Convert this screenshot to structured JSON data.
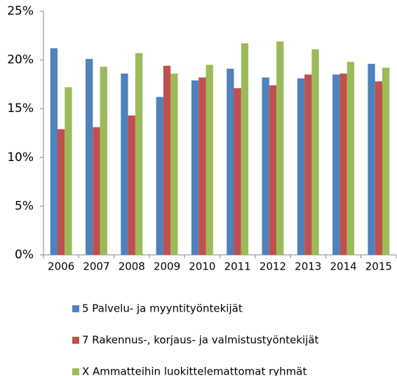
{
  "chart_data": {
    "type": "bar",
    "categories": [
      "2006",
      "2007",
      "2008",
      "2009",
      "2010",
      "2011",
      "2012",
      "2013",
      "2014",
      "2015"
    ],
    "series": [
      {
        "name": "5 Palvelu- ja myyntityöntekijät",
        "color": "#4f81bd",
        "values": [
          21.2,
          20.1,
          18.6,
          16.2,
          17.9,
          19.1,
          18.2,
          18.1,
          18.5,
          19.6
        ]
      },
      {
        "name": "7 Rakennus-, korjaus- ja valmistustyöntekijät",
        "color": "#c0504d",
        "values": [
          12.9,
          13.1,
          14.3,
          19.4,
          18.2,
          17.1,
          17.4,
          18.5,
          18.6,
          17.8
        ]
      },
      {
        "name": "X Ammatteihin luokittelemattomat ryhmät",
        "color": "#9bbb59",
        "values": [
          17.2,
          19.3,
          20.7,
          18.6,
          19.5,
          21.7,
          21.9,
          21.1,
          19.8,
          19.2
        ]
      }
    ],
    "ylim": [
      0,
      25
    ],
    "yticks": [
      {
        "value": 0,
        "label": "0%"
      },
      {
        "value": 5,
        "label": "5%"
      },
      {
        "value": 10,
        "label": "10%"
      },
      {
        "value": 15,
        "label": "15%"
      },
      {
        "value": 20,
        "label": "20%"
      },
      {
        "value": 25,
        "label": "25%"
      }
    ],
    "grid": false,
    "legend": "bottom"
  }
}
